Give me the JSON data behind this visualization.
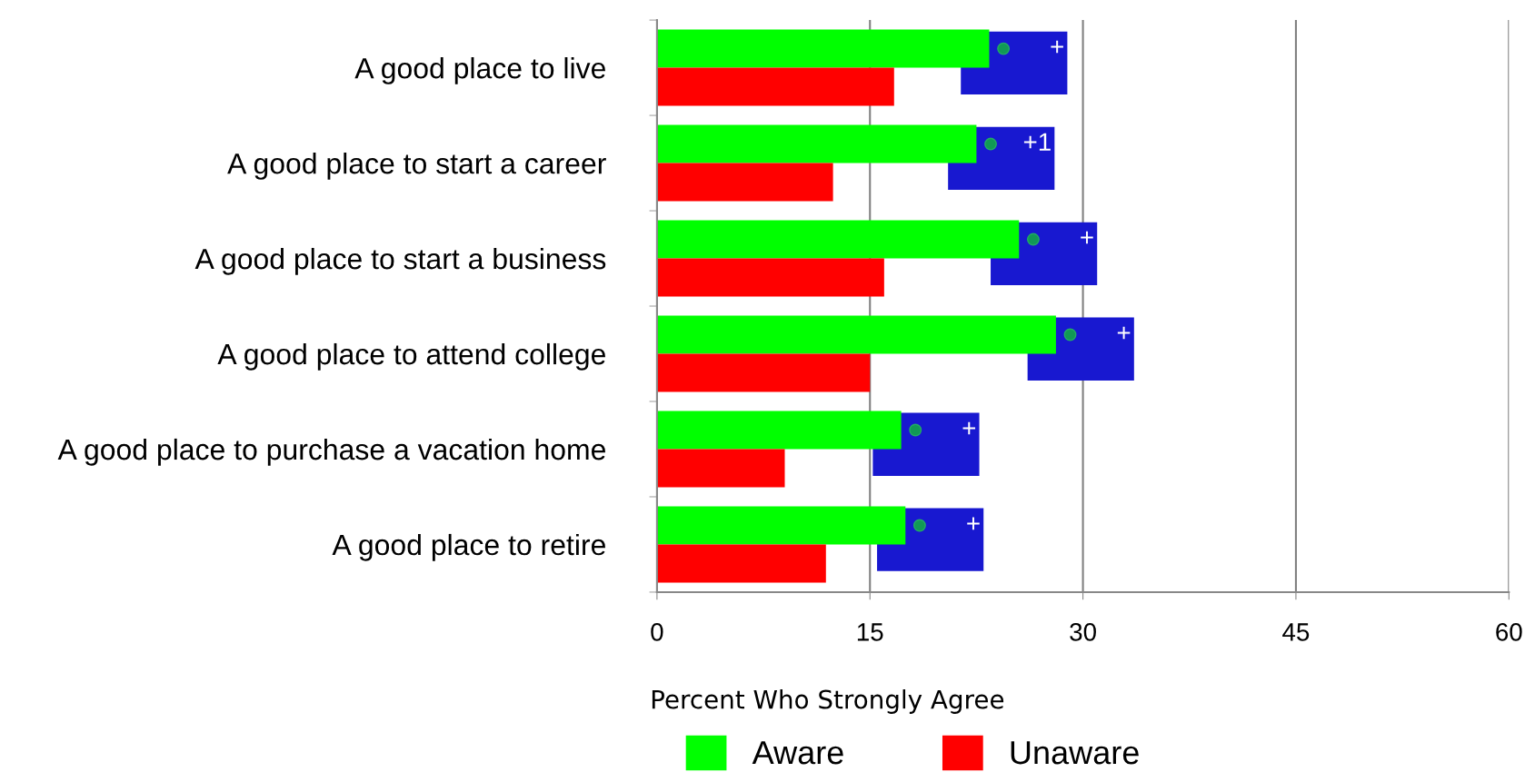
{
  "chart_data": {
    "type": "bar",
    "orientation": "horizontal",
    "categories": [
      "A good place to live",
      "A good place to start a career",
      "A good place to start a business",
      "A good place to attend college",
      "A good place to purchase a vacation home",
      "A good place to retire"
    ],
    "series": [
      {
        "name": "Aware",
        "color": "#00ff00",
        "values": [
          23.4,
          22.5,
          25.5,
          28.1,
          17.2,
          17.5
        ]
      },
      {
        "name": "Unaware",
        "color": "#ff0000",
        "values": [
          16.7,
          12.4,
          16.0,
          15.0,
          9.0,
          11.9
        ]
      }
    ],
    "xlabel": "Percent Who Strongly Agree",
    "xlim": [
      0,
      60
    ],
    "xticks": [
      0,
      15,
      30,
      45,
      60
    ],
    "grid": "x",
    "legend": "bottom",
    "annotations": [
      "+",
      "+1",
      "+",
      "+",
      "+",
      "+"
    ]
  }
}
